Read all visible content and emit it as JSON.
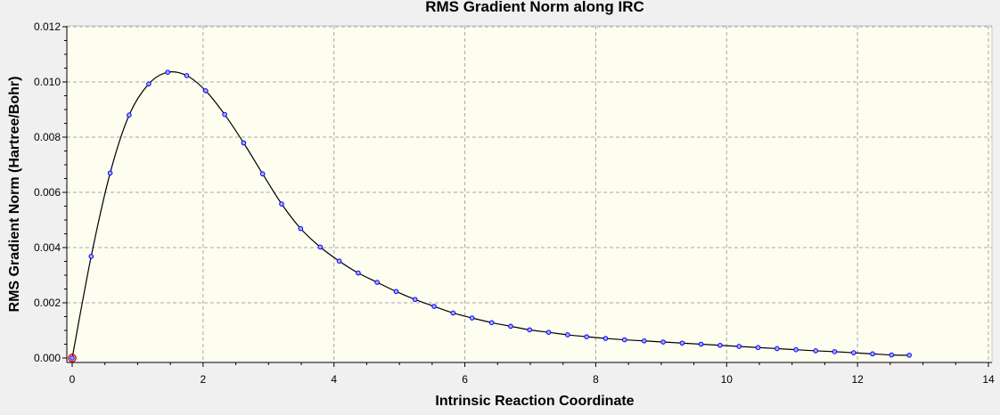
{
  "chart_data": {
    "type": "line",
    "title": "RMS Gradient Norm along IRC",
    "xlabel": "Intrinsic Reaction Coordinate",
    "ylabel": "RMS Gradient Norm (Hartree/Bohr)",
    "xlim": [
      0,
      14
    ],
    "ylim": [
      0,
      0.012
    ],
    "xticks": [
      0,
      2,
      4,
      6,
      8,
      10,
      12,
      14
    ],
    "yticks": [
      0.0,
      0.002,
      0.004,
      0.006,
      0.008,
      0.01,
      0.012
    ],
    "ytick_labels": [
      "0.000",
      "0.002",
      "0.004",
      "0.006",
      "0.008",
      "0.010",
      "0.012"
    ],
    "grid": true,
    "colors": {
      "plot_background": "#fdfdf0",
      "line": "#000000",
      "marker_edge": "#0000ff",
      "marker_fill": "#aaaaff",
      "highlight": "#cc0000"
    },
    "highlighted_point_index": 0,
    "series": [
      {
        "x": [
          0.0,
          0.29,
          0.58,
          0.87,
          1.17,
          1.46,
          1.75,
          2.04,
          2.33,
          2.62,
          2.91,
          3.2,
          3.49,
          3.79,
          4.08,
          4.37,
          4.66,
          4.95,
          5.24,
          5.53,
          5.82,
          6.11,
          6.41,
          6.7,
          6.99,
          7.28,
          7.57,
          7.86,
          8.15,
          8.44,
          8.74,
          9.03,
          9.32,
          9.61,
          9.9,
          10.19,
          10.48,
          10.77,
          11.06,
          11.36,
          11.65,
          11.94,
          12.23,
          12.52,
          12.79
        ],
        "y": [
          0.0,
          0.00368,
          0.0067,
          0.0088,
          0.00993,
          0.01035,
          0.01023,
          0.00968,
          0.00882,
          0.00779,
          0.00667,
          0.00558,
          0.00469,
          0.00402,
          0.00351,
          0.00308,
          0.00274,
          0.00241,
          0.00212,
          0.00187,
          0.00163,
          0.00145,
          0.00128,
          0.00115,
          0.00102,
          0.00093,
          0.00084,
          0.00077,
          0.00071,
          0.00066,
          0.00062,
          0.00058,
          0.00054,
          0.0005,
          0.00046,
          0.00042,
          0.00038,
          0.00034,
          0.0003,
          0.00026,
          0.00023,
          0.00019,
          0.00015,
          0.00011,
          0.0001
        ]
      }
    ]
  }
}
